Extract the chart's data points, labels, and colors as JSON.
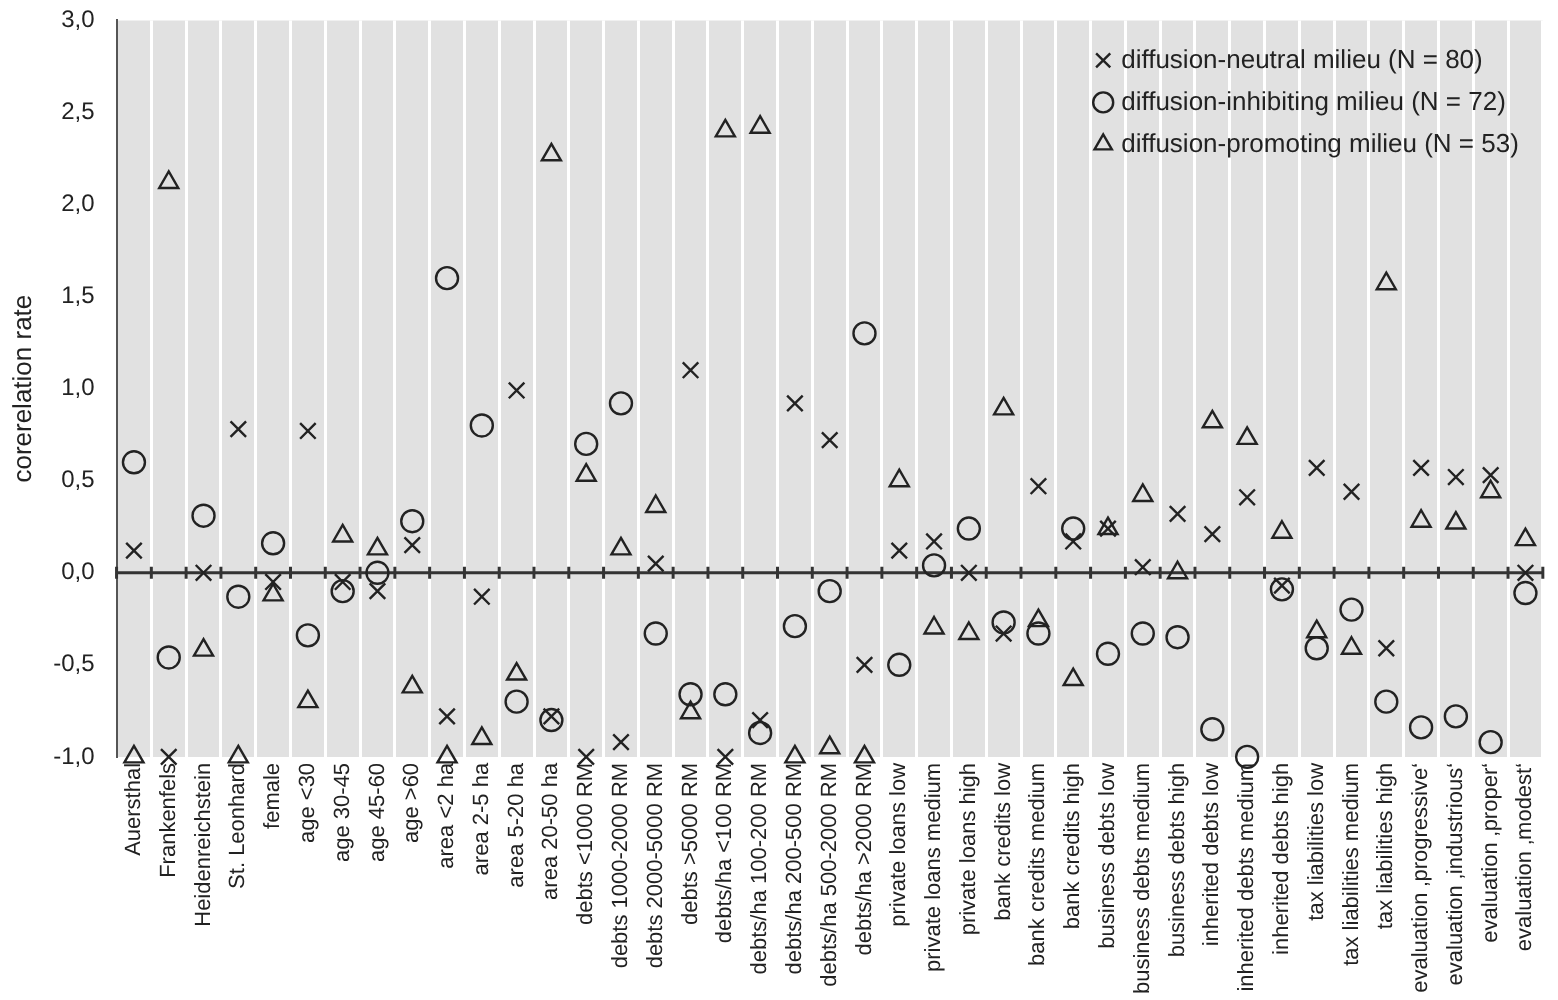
{
  "chart_data": {
    "type": "scatter",
    "ylabel": "corerelation rate",
    "categories": [
      "Auersthal",
      "Frankenfels",
      "Heidenreichstein",
      "St. Leonhard",
      "female",
      "age <30",
      "age 30-45",
      "age 45-60",
      "age >60",
      "area <2 ha",
      "area 2-5 ha",
      "area 5-20 ha",
      "area 20-50 ha",
      "debts <1000 RM",
      "debts 1000-2000 RM",
      "debts 2000-5000 RM",
      "debts >5000 RM",
      "debts/ha <100 RM",
      "debts/ha 100-200 RM",
      "debts/ha 200-500 RM",
      "debts/ha 500-2000 RM",
      "debts/ha >2000 RM",
      "private loans low",
      "private loans medium",
      "private loans high",
      "bank credits low",
      "bank credits medium",
      "bank credits high",
      "business debts low",
      "business debts medium",
      "business debts high",
      "inherited debts low",
      "inherited debts medium",
      "inherited debts high",
      "tax liabilities low",
      "tax liabilities medium",
      "tax liabilities high",
      "evaluation ‚progressive‘",
      "evaluation ‚industrious‘",
      "evaluation ‚proper‘",
      "evaluation ‚modest‘"
    ],
    "series": [
      {
        "name": "diffusion-neutral milieu (N = 80)",
        "color": "#222222",
        "marker": "cross",
        "values": [
          0.12,
          -1.0,
          0.0,
          0.78,
          -0.05,
          0.77,
          -0.05,
          -0.1,
          0.15,
          -0.78,
          -0.13,
          0.99,
          -0.78,
          -1.0,
          -0.92,
          0.05,
          1.1,
          -1.0,
          -0.8,
          0.92,
          0.72,
          -0.5,
          0.12,
          0.17,
          0.0,
          -0.33,
          0.47,
          0.17,
          0.24,
          0.03,
          0.32,
          0.21,
          0.41,
          -0.07,
          0.57,
          0.44,
          -0.41,
          0.57,
          0.52,
          0.53,
          0.0
        ]
      },
      {
        "name": "diffusion-inhibiting milieu (N = 72)",
        "color": "#222222",
        "marker": "circle",
        "values": [
          0.6,
          -0.46,
          0.31,
          -0.13,
          0.16,
          -0.34,
          -0.1,
          0.0,
          0.28,
          1.6,
          0.8,
          -0.7,
          -0.8,
          0.7,
          0.92,
          -0.33,
          -0.66,
          -0.66,
          -0.87,
          -0.29,
          -0.1,
          1.3,
          -0.5,
          0.04,
          0.24,
          -0.27,
          -0.33,
          0.24,
          -0.44,
          -0.33,
          -0.35,
          -0.85,
          -1.0,
          -0.09,
          -0.41,
          -0.2,
          -0.7,
          -0.84,
          -0.78,
          -0.92,
          -0.11
        ]
      },
      {
        "name": "diffusion-promoting milieu (N = 53)",
        "color": "#222222",
        "marker": "triangle",
        "values": [
          -1.0,
          2.12,
          -0.42,
          -1.0,
          -0.12,
          -0.7,
          0.2,
          0.13,
          -0.62,
          -1.0,
          -0.9,
          -0.55,
          2.27,
          0.53,
          0.13,
          0.36,
          -0.76,
          2.4,
          2.42,
          -1.0,
          -0.95,
          -1.0,
          0.5,
          -0.3,
          -0.33,
          0.89,
          -0.26,
          -0.58,
          0.24,
          0.42,
          0.0,
          0.82,
          0.73,
          0.22,
          -0.32,
          -0.41,
          1.57,
          0.28,
          0.27,
          0.44,
          0.18
        ]
      }
    ],
    "ylim": [
      -1.0,
      3.0
    ],
    "yticks": [
      {
        "value": -1.0,
        "label": "-1,0"
      },
      {
        "value": -0.5,
        "label": "-0,5"
      },
      {
        "value": 0.0,
        "label": "0,0"
      },
      {
        "value": 0.5,
        "label": "0,5"
      },
      {
        "value": 1.0,
        "label": "1,0"
      },
      {
        "value": 1.5,
        "label": "1,5"
      },
      {
        "value": 2.0,
        "label": "2,0"
      },
      {
        "value": 2.5,
        "label": "2,5"
      },
      {
        "value": 3.0,
        "label": "3,0"
      }
    ],
    "ref_lines": [
      {
        "axis": "y",
        "value": 0,
        "color": "#333333"
      }
    ],
    "grid": "x",
    "legend": "top right"
  }
}
